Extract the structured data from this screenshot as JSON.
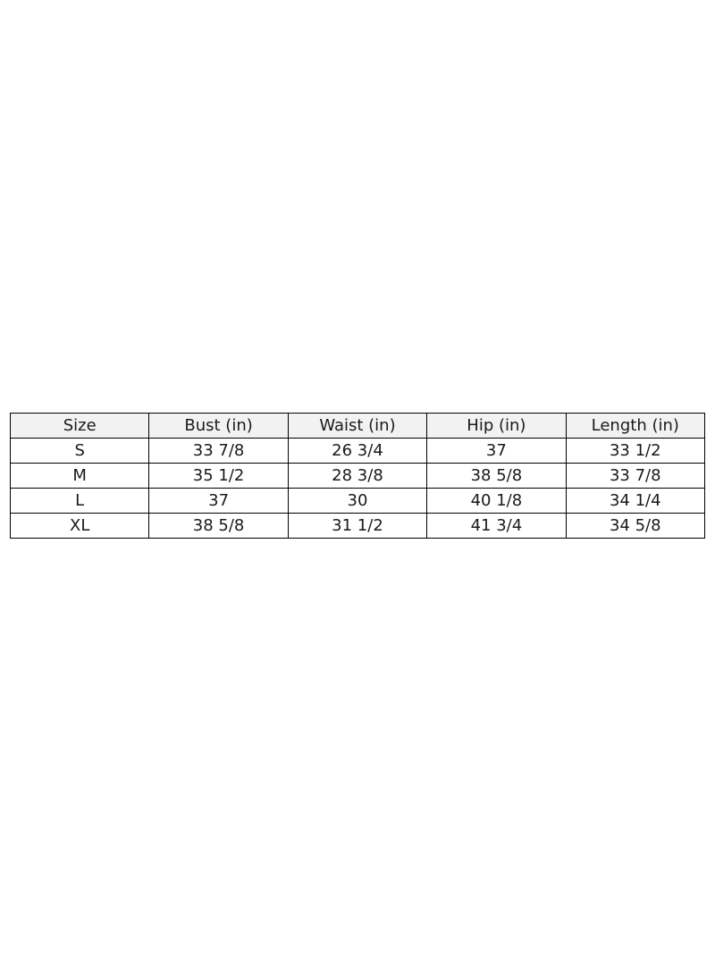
{
  "table": {
    "headers": [
      "Size",
      "Bust (in)",
      "Waist (in)",
      "Hip (in)",
      "Length (in)"
    ],
    "rows": [
      [
        "S",
        "33 7/8",
        "26 3/4",
        "37",
        "33 1/2"
      ],
      [
        "M",
        "35 1/2",
        "28 3/8",
        "38 5/8",
        "33 7/8"
      ],
      [
        "L",
        "37",
        "30",
        "40 1/8",
        "34 1/4"
      ],
      [
        "XL",
        "38 5/8",
        "31 1/2",
        "41 3/4",
        "34 5/8"
      ]
    ],
    "header_bg": "#f2f2f2"
  }
}
